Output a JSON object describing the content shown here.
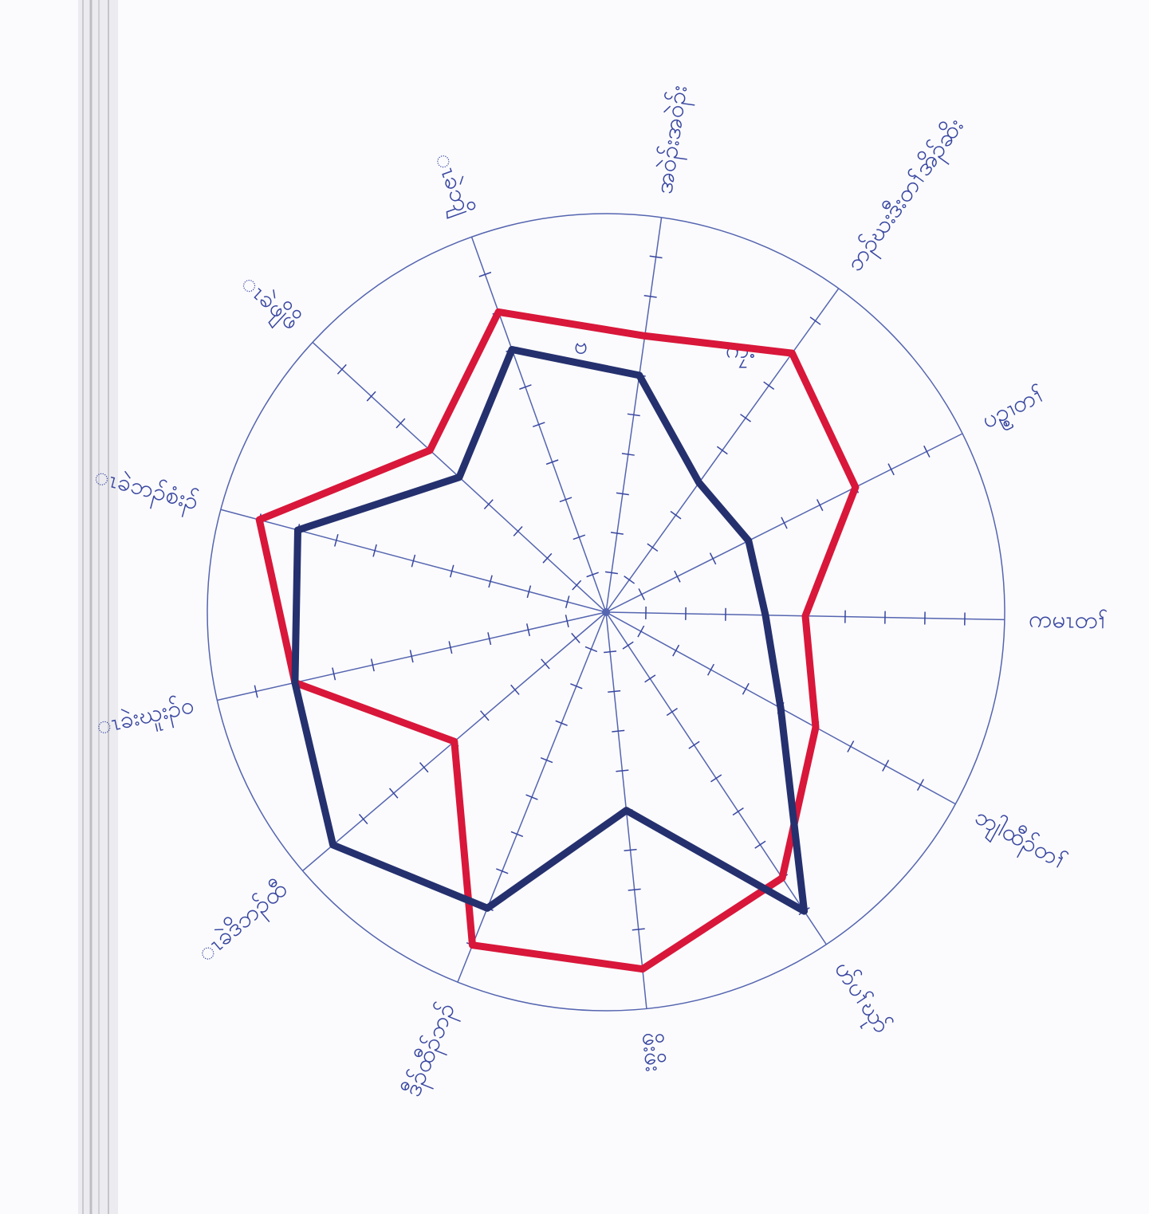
{
  "chart_data": {
    "type": "radar",
    "categories": [
      "အဝဲၣ်းအဝဲၣ်း",
      "ဘၣ်ဃးဒီးတၢ်အိၣ်ဆိး",
      "ပဥ္စၢတၢ်",
      "ကမၤတၢ်",
      "ဘျါထီၣ်တၢ်",
      "ဟ်ပၢ်ဃုာ်",
      "ဖိးဖိး",
      "ဒီၣ်ထီၣ်ဘၣ်",
      "ၤခဲဒိဘၣ်ထီ",
      "ၤခဲးဃူးၣ်ဝ",
      "ၤခဲဘၣ်စံးၣ်",
      "ၤခဲဖျိဖိ",
      "ၤခဲဘျိ"
    ],
    "series": [
      {
        "color": "#d8173a",
        "values": [
          7,
          8,
          7,
          5,
          6,
          8,
          9,
          9,
          5,
          8,
          9,
          6,
          8
        ]
      },
      {
        "color": "#25306e",
        "values": [
          6,
          4,
          4,
          4,
          5,
          9,
          5,
          8,
          9,
          8,
          8,
          5,
          7
        ]
      }
    ],
    "rlim": [
      0,
      10
    ],
    "rticks": [
      1,
      2,
      3,
      4,
      5,
      6,
      7,
      8,
      9
    ],
    "annotations": [
      "ဗ",
      "ကၠး"
    ]
  }
}
